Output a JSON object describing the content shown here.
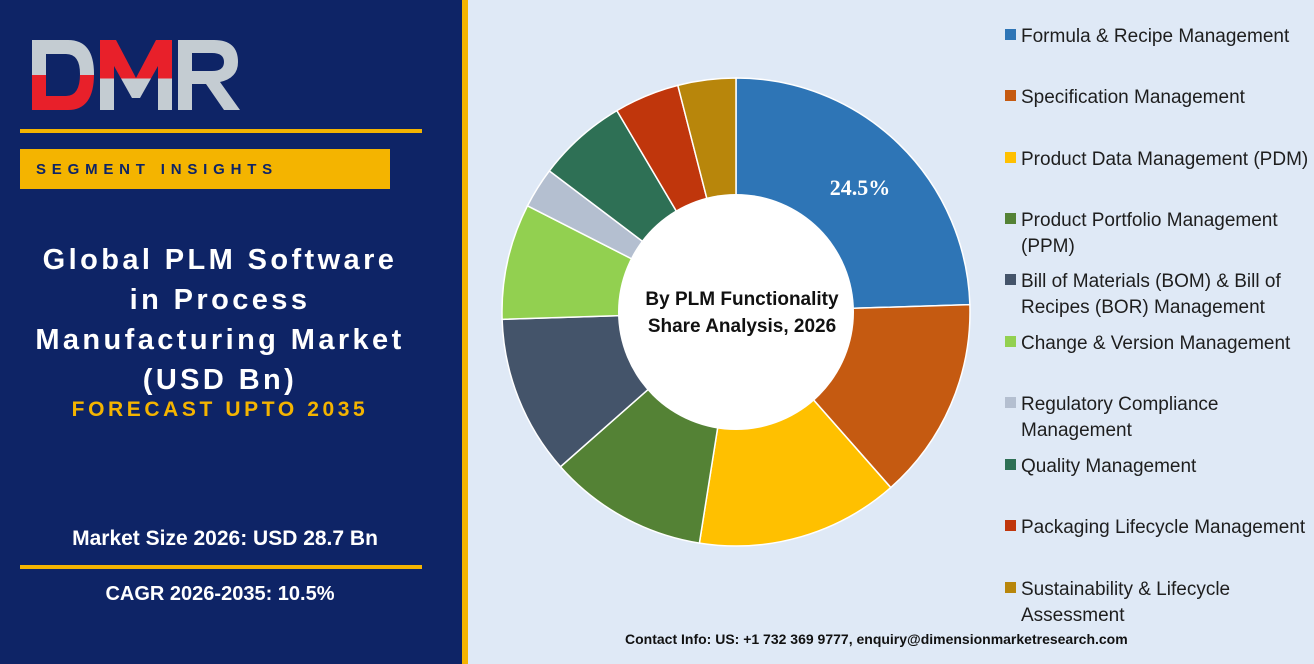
{
  "brand": {
    "logo_text": "DMR",
    "logo_colors": [
      "#e8202a",
      "#c4ccd2"
    ]
  },
  "left_panel": {
    "segment_label": "SEGMENT INSIGHTS",
    "title_lines": [
      "Global PLM Software",
      "in Process",
      "Manufacturing Market",
      "(USD Bn)"
    ],
    "forecast": "FORECAST UPTO 2035",
    "market_size": "Market Size 2026: USD 28.7 Bn",
    "cagr": "CAGR 2026-2035: 10.5%"
  },
  "footer": {
    "contact": "Contact Info: US: +1 732 369 9777, enquiry@dimensionmarketresearch.com"
  },
  "chart_data": {
    "type": "pie",
    "donut": true,
    "title": "By PLM Functionality\nShare Analysis, 2026",
    "title_lines": [
      "By PLM Functionality",
      "Share Analysis, 2026"
    ],
    "legend_position": "right",
    "unit": "%",
    "categories": [
      "Formula & Recipe Management",
      "Specification Management",
      "Product Data Management (PDM)",
      "Product Portfolio Management (PPM)",
      "Bill of Materials (BOM) & Bill of Recipes (BOR) Management",
      "Change & Version Management",
      "Regulatory Compliance Management",
      "Quality Management",
      "Packaging Lifecycle Management",
      "Sustainability & Lifecycle Assessment"
    ],
    "values": [
      24.5,
      14.0,
      14.0,
      11.0,
      11.0,
      8.0,
      2.8,
      6.2,
      4.5,
      4.0
    ],
    "colors": [
      "#2e75b6",
      "#c55a11",
      "#ffc000",
      "#548235",
      "#44546a",
      "#92d050",
      "#b4bfd0",
      "#2e7055",
      "#c0360c",
      "#b8860b"
    ],
    "data_labels": [
      {
        "category": "Formula & Recipe Management",
        "text": "24.5%"
      }
    ]
  }
}
